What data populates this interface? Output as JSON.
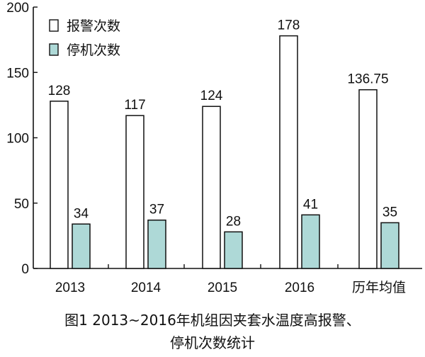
{
  "caption": {
    "line1": "图1  2013~2016年机组因夹套水温度高报警、",
    "line2": "停机次数统计"
  },
  "colors": {
    "series1_fill": "#ffffff",
    "series2_fill": "#aed9d7",
    "stroke": "#111111"
  },
  "chart_data": {
    "type": "bar",
    "categories": [
      "2013",
      "2014",
      "2015",
      "2016",
      "历年均值"
    ],
    "series": [
      {
        "name": "报警次数",
        "values": [
          128,
          117,
          124,
          178,
          136.75
        ],
        "labels": [
          "128",
          "117",
          "124",
          "178",
          "136.75"
        ]
      },
      {
        "name": "停机次数",
        "values": [
          34,
          37,
          28,
          41,
          35
        ],
        "labels": [
          "34",
          "37",
          "28",
          "41",
          "35"
        ]
      }
    ],
    "ylim": [
      0,
      200
    ],
    "yticks": [
      0,
      50,
      100,
      150,
      200
    ],
    "legend": "top-left",
    "grid": false
  }
}
